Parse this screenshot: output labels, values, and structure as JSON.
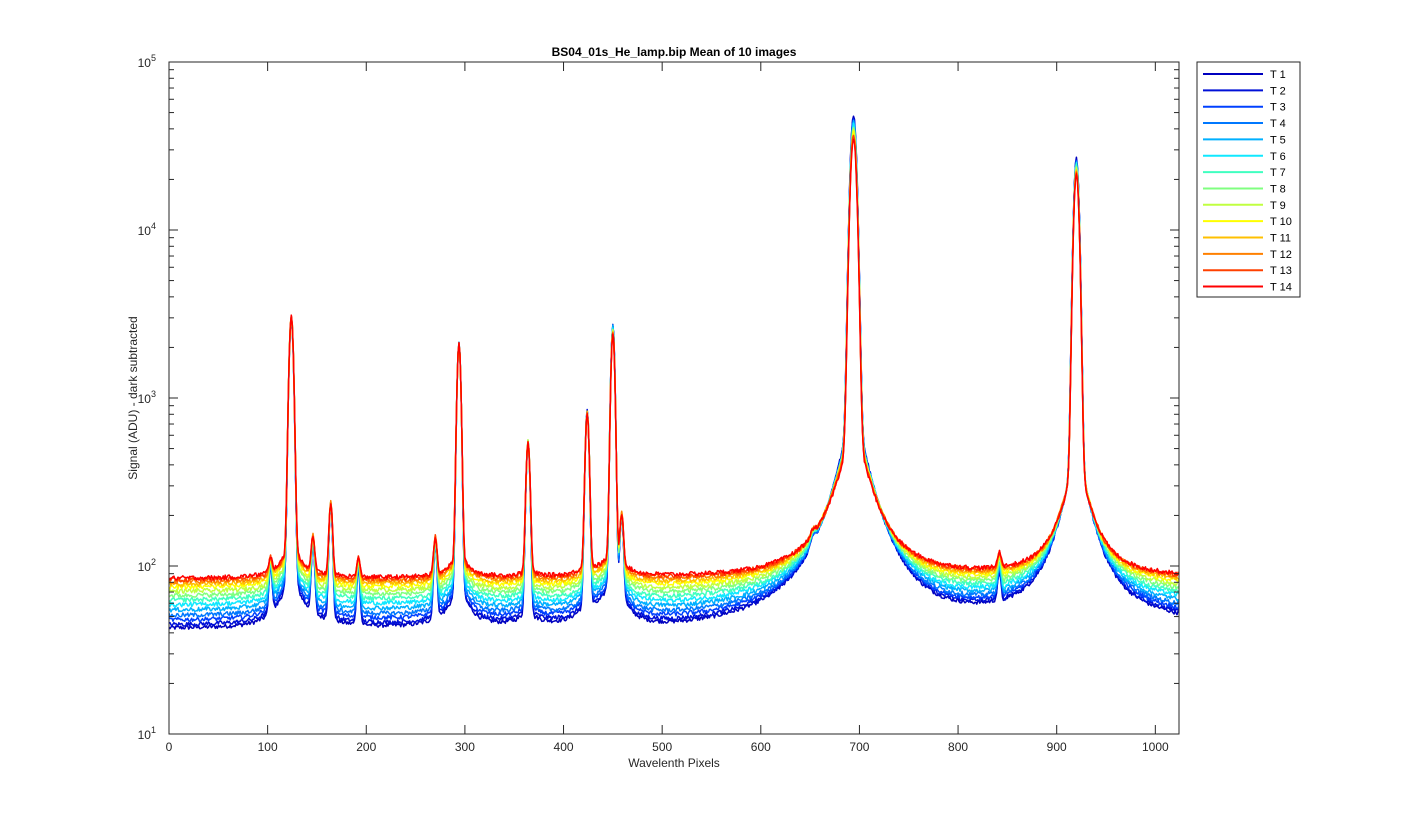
{
  "chart_data": {
    "type": "line",
    "title": "BS04_01s_He_lamp.bip  Mean of 10 images",
    "xlabel": "Wavelenth Pixels",
    "ylabel": "Signal (ADU) - dark subtracted",
    "xlim": [
      0,
      1024
    ],
    "ylim": [
      10,
      100000
    ],
    "yscale": "log",
    "grid": false,
    "legend_position": "outside-top-right",
    "x_ticks": [
      "0",
      "100",
      "200",
      "300",
      "400",
      "500",
      "600",
      "700",
      "800",
      "900",
      "1000"
    ],
    "y_ticks": [
      {
        "base": "10",
        "exp": "1"
      },
      {
        "base": "10",
        "exp": "2"
      },
      {
        "base": "10",
        "exp": "3"
      },
      {
        "base": "10",
        "exp": "4"
      },
      {
        "base": "10",
        "exp": "5"
      }
    ],
    "peaks": [
      {
        "x": 103,
        "width": 1.5,
        "amp_low": 55,
        "amp_high": 20
      },
      {
        "x": 124,
        "width": 2.0,
        "amp_low": 3200,
        "amp_high": 3250
      },
      {
        "x": 146,
        "width": 1.6,
        "amp_low": 90,
        "amp_high": 65
      },
      {
        "x": 164,
        "width": 1.6,
        "amp_low": 210,
        "amp_high": 165
      },
      {
        "x": 192,
        "width": 1.5,
        "amp_low": 60,
        "amp_high": 28
      },
      {
        "x": 270,
        "width": 1.6,
        "amp_low": 95,
        "amp_high": 65
      },
      {
        "x": 294,
        "width": 1.8,
        "amp_low": 2250,
        "amp_high": 2200
      },
      {
        "x": 364,
        "width": 1.8,
        "amp_low": 560,
        "amp_high": 500
      },
      {
        "x": 424,
        "width": 1.8,
        "amp_low": 870,
        "amp_high": 780
      },
      {
        "x": 450,
        "width": 1.8,
        "amp_low": 2950,
        "amp_high": 2550
      },
      {
        "x": 459,
        "width": 1.6,
        "amp_low": 150,
        "amp_high": 110
      },
      {
        "x": 653,
        "width": 2.5,
        "amp_low": 20,
        "amp_high": 12
      },
      {
        "x": 694,
        "width": 2.8,
        "amp_low": 52000,
        "amp_high": 38000
      },
      {
        "x": 842,
        "width": 1.8,
        "amp_low": 30,
        "amp_high": 25
      },
      {
        "x": 920,
        "width": 2.4,
        "amp_low": 29000,
        "amp_high": 23500
      }
    ],
    "series": [
      {
        "name": "T 1",
        "color": "#0000bf",
        "baseline": 42
      },
      {
        "name": "T 2",
        "color": "#0010d8",
        "baseline": 44
      },
      {
        "name": "T 3",
        "color": "#0040ff",
        "baseline": 47
      },
      {
        "name": "T 4",
        "color": "#0078ff",
        "baseline": 50
      },
      {
        "name": "T 5",
        "color": "#00b0ff",
        "baseline": 54
      },
      {
        "name": "T 6",
        "color": "#10e8ff",
        "baseline": 58
      },
      {
        "name": "T 7",
        "color": "#40ffc0",
        "baseline": 62
      },
      {
        "name": "T 8",
        "color": "#80ff80",
        "baseline": 66
      },
      {
        "name": "T 9",
        "color": "#c0ff40",
        "baseline": 70
      },
      {
        "name": "T 10",
        "color": "#ffff00",
        "baseline": 74
      },
      {
        "name": "T 11",
        "color": "#ffc000",
        "baseline": 77
      },
      {
        "name": "T 12",
        "color": "#ff8000",
        "baseline": 80
      },
      {
        "name": "T 13",
        "color": "#ff4000",
        "baseline": 82
      },
      {
        "name": "T 14",
        "color": "#ff0000",
        "baseline": 84
      }
    ]
  }
}
